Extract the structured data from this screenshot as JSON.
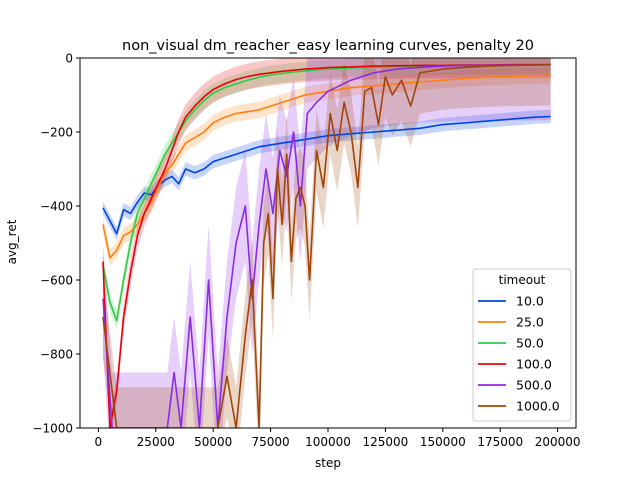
{
  "chart_data": {
    "type": "line",
    "title": "non_visual dm_reacher_easy learning curves, penalty 20",
    "xlabel": "step",
    "ylabel": "avg_ret",
    "xlim": [
      -8000,
      208000
    ],
    "ylim": [
      -1000,
      0
    ],
    "xticks": [
      0,
      25000,
      50000,
      75000,
      100000,
      125000,
      150000,
      175000,
      200000
    ],
    "yticks": [
      0,
      -200,
      -400,
      -600,
      -800,
      -1000
    ],
    "grid": false,
    "legend": {
      "title": "timeout",
      "position": "lower-right"
    },
    "series": [
      {
        "name": "10.0",
        "color": "#0044e0",
        "x": [
          2000,
          5000,
          8000,
          11000,
          14000,
          17000,
          20000,
          23000,
          26000,
          29000,
          32000,
          35000,
          38000,
          42000,
          46000,
          50000,
          55000,
          60000,
          65000,
          70000,
          75000,
          80000,
          85000,
          90000,
          95000,
          100000,
          110000,
          120000,
          130000,
          140000,
          150000,
          160000,
          170000,
          180000,
          190000,
          197000
        ],
        "y": [
          -405,
          -440,
          -475,
          -410,
          -420,
          -390,
          -365,
          -370,
          -345,
          -330,
          -320,
          -340,
          -300,
          -310,
          -300,
          -280,
          -270,
          -260,
          -250,
          -240,
          -235,
          -230,
          -225,
          -220,
          -215,
          -210,
          -205,
          -200,
          -195,
          -190,
          -180,
          -175,
          -170,
          -165,
          -160,
          -158
        ],
        "band": 18
      },
      {
        "name": "25.0",
        "color": "#ff7f0e",
        "x": [
          2000,
          5000,
          8000,
          11000,
          14000,
          17000,
          20000,
          23000,
          26000,
          29000,
          32000,
          35000,
          38000,
          42000,
          46000,
          50000,
          55000,
          60000,
          65000,
          70000,
          75000,
          80000,
          85000,
          90000,
          95000,
          100000,
          110000,
          120000,
          130000,
          140000,
          150000,
          160000,
          170000,
          180000,
          190000,
          197000
        ],
        "y": [
          -450,
          -540,
          -520,
          -480,
          -470,
          -450,
          -420,
          -390,
          -350,
          -310,
          -290,
          -260,
          -230,
          -215,
          -200,
          -175,
          -160,
          -150,
          -145,
          -140,
          -130,
          -120,
          -110,
          -100,
          -95,
          -90,
          -80,
          -75,
          -70,
          -65,
          -60,
          -55,
          -52,
          -50,
          -48,
          -46
        ],
        "band": 22
      },
      {
        "name": "50.0",
        "color": "#2ecc40",
        "x": [
          2000,
          5000,
          8000,
          11000,
          14000,
          17000,
          20000,
          23000,
          26000,
          29000,
          32000,
          35000,
          38000,
          42000,
          46000,
          50000,
          55000,
          60000,
          65000,
          70000,
          75000,
          80000,
          85000,
          90000,
          95000,
          100000,
          110000,
          120000,
          130000,
          140000,
          150000,
          160000,
          170000,
          180000,
          190000,
          197000
        ],
        "y": [
          -560,
          -660,
          -710,
          -600,
          -500,
          -420,
          -380,
          -340,
          -300,
          -260,
          -230,
          -200,
          -170,
          -140,
          -115,
          -95,
          -80,
          -70,
          -60,
          -52,
          -46,
          -42,
          -38,
          -35,
          -32,
          -30,
          -27,
          -25,
          -23,
          -22,
          -21,
          -20,
          -20,
          -19,
          -19,
          -18
        ],
        "band": 25
      },
      {
        "name": "100.0",
        "color": "#e8000b",
        "x": [
          2000,
          5000,
          8000,
          11000,
          14000,
          17000,
          20000,
          23000,
          26000,
          29000,
          32000,
          35000,
          38000,
          42000,
          46000,
          50000,
          55000,
          60000,
          65000,
          70000,
          75000,
          80000,
          85000,
          90000,
          95000,
          100000,
          110000,
          120000,
          130000,
          140000,
          150000,
          160000,
          170000,
          180000,
          190000,
          197000
        ],
        "y": [
          -550,
          -1000,
          -900,
          -700,
          -580,
          -480,
          -420,
          -380,
          -340,
          -300,
          -250,
          -200,
          -160,
          -130,
          -105,
          -85,
          -70,
          -58,
          -50,
          -44,
          -40,
          -36,
          -33,
          -30,
          -28,
          -26,
          -24,
          -22,
          -21,
          -20,
          -20,
          -19,
          -19,
          -18,
          -18,
          -18
        ],
        "band": 35
      },
      {
        "name": "500.0",
        "color": "#8b2be2",
        "x": [
          2000,
          6000,
          10000,
          15000,
          20000,
          25000,
          30000,
          33000,
          36000,
          40000,
          44000,
          48000,
          52000,
          56000,
          60000,
          64000,
          67000,
          70000,
          73000,
          76000,
          79000,
          82000,
          85000,
          88000,
          91000,
          95000,
          100000,
          110000,
          120000,
          130000,
          140000,
          150000,
          160000,
          170000,
          180000,
          190000,
          197000
        ],
        "y": [
          -650,
          -1000,
          -1000,
          -1000,
          -1000,
          -1000,
          -1000,
          -850,
          -1000,
          -700,
          -1000,
          -600,
          -1000,
          -700,
          -500,
          -400,
          -650,
          -450,
          -300,
          -420,
          -250,
          -320,
          -200,
          -400,
          -150,
          -120,
          -90,
          -60,
          -40,
          -30,
          -25,
          -22,
          -20,
          -20,
          -19,
          -19,
          -18
        ],
        "band": 150
      },
      {
        "name": "1000.0",
        "color": "#a0450a",
        "x": [
          2000,
          8000,
          15000,
          25000,
          35000,
          45000,
          52000,
          56000,
          60000,
          64000,
          67000,
          70000,
          72000,
          74000,
          76000,
          78000,
          80000,
          82000,
          84000,
          86000,
          88000,
          90000,
          92000,
          95000,
          98000,
          101000,
          104000,
          107000,
          110000,
          113000,
          116000,
          119000,
          122000,
          125000,
          128000,
          132000,
          136000,
          140000,
          145000,
          150000,
          160000,
          170000,
          180000,
          190000,
          197000
        ],
        "y": [
          -700,
          -1000,
          -1000,
          -1000,
          -1000,
          -1000,
          -1000,
          -860,
          -1000,
          -750,
          -600,
          -1000,
          -500,
          -420,
          -650,
          -300,
          -450,
          -260,
          -550,
          -380,
          -350,
          -400,
          -600,
          -250,
          -350,
          -150,
          -250,
          -120,
          -200,
          -350,
          -90,
          -80,
          -180,
          -50,
          -100,
          -60,
          -130,
          -40,
          -35,
          -30,
          -25,
          -22,
          -20,
          -19,
          -18
        ],
        "band": 110
      }
    ]
  }
}
